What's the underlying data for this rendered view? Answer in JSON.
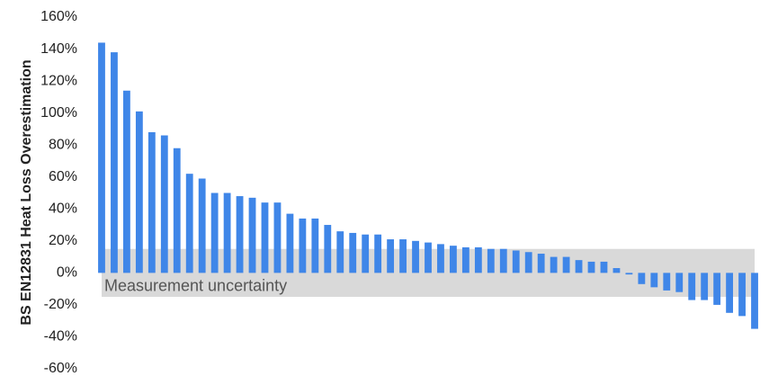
{
  "chart_data": {
    "type": "bar",
    "y_label": "BS EN12831 Heat Loss Overestimation",
    "values": [
      144,
      138,
      114,
      101,
      88,
      86,
      78,
      62,
      59,
      50,
      50,
      48,
      47,
      44,
      44,
      37,
      34,
      34,
      30,
      26,
      25,
      24,
      24,
      21,
      21,
      20,
      19,
      18,
      17,
      16,
      16,
      15,
      15,
      14,
      13,
      12,
      10,
      10,
      8,
      7,
      7,
      3,
      -1,
      -7,
      -9,
      -11,
      -12,
      -17,
      -17,
      -20,
      -25,
      -27,
      -35
    ],
    "color": "#3f86e8",
    "ylim": [
      -60,
      160
    ],
    "yticks": [
      {
        "value": -60,
        "label": "-60%"
      },
      {
        "value": -40,
        "label": "-40%"
      },
      {
        "value": -20,
        "label": "-20%"
      },
      {
        "value": 0,
        "label": "0%"
      },
      {
        "value": 20,
        "label": "20%"
      },
      {
        "value": 40,
        "label": "40%"
      },
      {
        "value": 60,
        "label": "60%"
      },
      {
        "value": 80,
        "label": "80%"
      },
      {
        "value": 100,
        "label": "100%"
      },
      {
        "value": 120,
        "label": "120%"
      },
      {
        "value": 140,
        "label": "140%"
      },
      {
        "value": 160,
        "label": "160%"
      }
    ],
    "band": {
      "label": "Measurement uncertainty",
      "range": [
        -15,
        15
      ],
      "color": "#d9d9d9"
    },
    "grid": false
  }
}
